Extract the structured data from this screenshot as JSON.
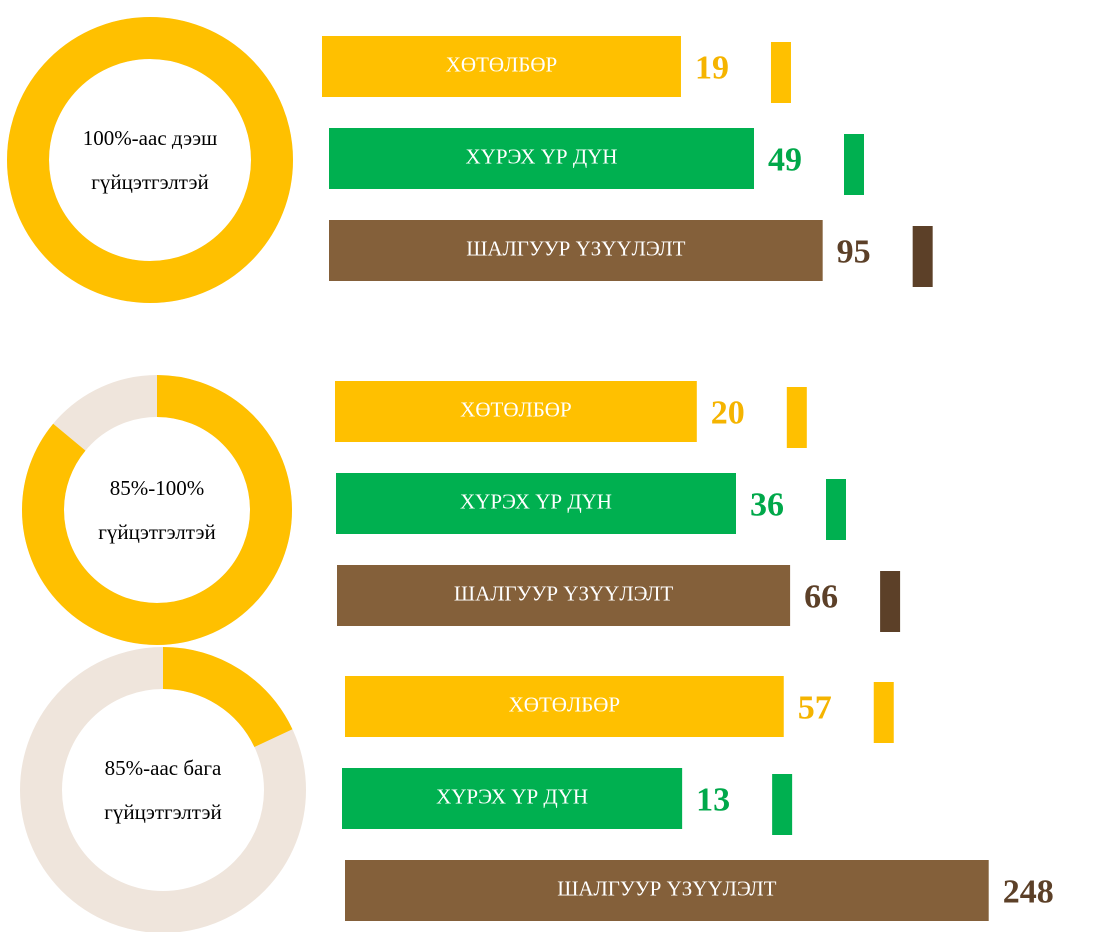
{
  "groups": [
    {
      "label": [
        "100%-аас дээш",
        "гүйцэтгэлтэй"
      ],
      "share": 100,
      "items": [
        {
          "label": "ХӨТӨЛБӨР",
          "value": 19,
          "color": "#ffc000"
        },
        {
          "label": "ХҮРЭХ ҮР ДҮН",
          "value": 49,
          "color": "#00b050"
        },
        {
          "label": "ШАЛГУУР ҮЗҮҮЛЭЛТ",
          "value": 95,
          "color": "#84603a"
        }
      ]
    },
    {
      "label": [
        "85%-100%",
        "гүйцэтгэлтэй"
      ],
      "share": 86,
      "items": [
        {
          "label": "ХӨТӨЛБӨР",
          "value": 20,
          "color": "#ffc000"
        },
        {
          "label": "ХҮРЭХ ҮР ДҮН",
          "value": 36,
          "color": "#00b050"
        },
        {
          "label": "ШАЛГУУР ҮЗҮҮЛЭЛТ",
          "value": 66,
          "color": "#84603a"
        }
      ]
    },
    {
      "label": [
        "85%-аас бага",
        "гүйцэтгэлтэй"
      ],
      "share": 18,
      "items": [
        {
          "label": "ХӨТӨЛБӨР",
          "value": 57,
          "color": "#ffc000"
        },
        {
          "label": "ХҮРЭХ ҮР ДҮН",
          "value": 13,
          "color": "#00b050"
        },
        {
          "label": "ШАЛГУУР ҮЗҮҮЛЭЛТ",
          "value": 248,
          "color": "#84603a"
        }
      ]
    }
  ]
}
